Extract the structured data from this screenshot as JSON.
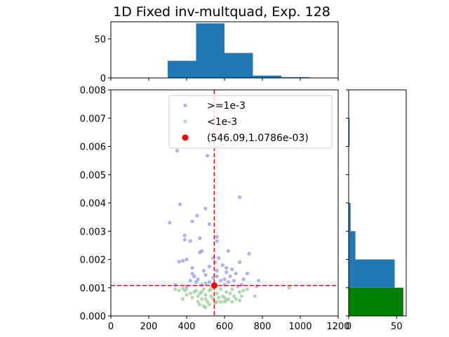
{
  "chart_data": {
    "type": "scatter",
    "title": "1D Fixed inv-multquad, Exp. 128",
    "xlim": [
      0,
      1200
    ],
    "ylim": [
      0,
      0.008
    ],
    "x_ticks": [
      0,
      200,
      400,
      600,
      800,
      1000,
      1200
    ],
    "y_ticks": [
      0.0,
      0.001,
      0.002,
      0.003,
      0.004,
      0.005,
      0.006,
      0.007,
      0.008
    ],
    "x_tick_labels": [
      "0",
      "200",
      "400",
      "600",
      "800",
      "1000",
      "1200"
    ],
    "y_tick_labels": [
      "0.000",
      "0.001",
      "0.002",
      "0.003",
      "0.004",
      "0.005",
      "0.006",
      "0.007",
      "0.008"
    ],
    "legend": {
      "placement": "upper-center",
      "entries": [
        ">=1e-3",
        "<1e-3",
        "(546.09,1.0786e-03)"
      ]
    },
    "colors": {
      "high": "#7b7bef",
      "low": "#7fbf7f",
      "best": "#ff0000",
      "hist": "#1f77b4",
      "hist_low": "#008000",
      "crosshair": "#ff0000"
    },
    "best_point": {
      "x": 546.09,
      "y": 0.0010786,
      "label": "(546.09,1.0786e-03)"
    },
    "series": [
      {
        "name": ">=1e-3",
        "points": [
          [
            350,
            0.00585
          ],
          [
            510,
            0.00567
          ],
          [
            680,
            0.0042
          ],
          [
            365,
            0.00395
          ],
          [
            500,
            0.0038
          ],
          [
            455,
            0.00355
          ],
          [
            310,
            0.0033
          ],
          [
            430,
            0.00335
          ],
          [
            520,
            0.00325
          ],
          [
            390,
            0.00285
          ],
          [
            390,
            0.0027
          ],
          [
            470,
            0.00275
          ],
          [
            560,
            0.0028
          ],
          [
            560,
            0.00265
          ],
          [
            420,
            0.00265
          ],
          [
            470,
            0.00225
          ],
          [
            480,
            0.0023
          ],
          [
            620,
            0.0023
          ],
          [
            730,
            0.0022
          ],
          [
            400,
            0.002
          ],
          [
            360,
            0.00192
          ],
          [
            380,
            0.00195
          ],
          [
            430,
            0.0017
          ],
          [
            430,
            0.0015
          ],
          [
            440,
            0.0014
          ],
          [
            490,
            0.0016
          ],
          [
            500,
            0.00145
          ],
          [
            520,
            0.00175
          ],
          [
            540,
            0.00205
          ],
          [
            550,
            0.0019
          ],
          [
            560,
            0.0016
          ],
          [
            570,
            0.00205
          ],
          [
            590,
            0.0018
          ],
          [
            610,
            0.0017
          ],
          [
            630,
            0.0014
          ],
          [
            640,
            0.00165
          ],
          [
            660,
            0.0015
          ],
          [
            680,
            0.0019
          ],
          [
            700,
            0.0013
          ],
          [
            720,
            0.0015
          ],
          [
            540,
            0.00135
          ],
          [
            600,
            0.0013
          ],
          [
            580,
            0.00125
          ],
          [
            520,
            0.0012
          ],
          [
            460,
            0.0013
          ],
          [
            420,
            0.00125
          ],
          [
            480,
            0.0011
          ],
          [
            620,
            0.0012
          ],
          [
            650,
            0.00125
          ],
          [
            690,
            0.0011
          ],
          [
            780,
            0.00125
          ],
          [
            770,
            0.00105
          ],
          [
            400,
            0.00105
          ],
          [
            340,
            0.0011
          ],
          [
            560,
            0.0014
          ],
          [
            600,
            0.0011
          ],
          [
            500,
            0.00115
          ],
          [
            670,
            0.00105
          ],
          [
            450,
            0.0012
          ],
          [
            610,
            0.00155
          ]
        ]
      },
      {
        "name": "<1e-3",
        "points": [
          [
            340,
            0.00095
          ],
          [
            360,
            0.0009
          ],
          [
            380,
            0.00098
          ],
          [
            390,
            0.0009
          ],
          [
            400,
            0.00075
          ],
          [
            380,
            0.0006
          ],
          [
            420,
            0.0008
          ],
          [
            430,
            0.00065
          ],
          [
            440,
            0.00085
          ],
          [
            450,
            0.0009
          ],
          [
            460,
            0.0007
          ],
          [
            470,
            0.0008
          ],
          [
            480,
            0.0006
          ],
          [
            490,
            0.00095
          ],
          [
            500,
            0.00075
          ],
          [
            510,
            0.0005
          ],
          [
            520,
            0.0009
          ],
          [
            530,
            0.0007
          ],
          [
            540,
            0.0006
          ],
          [
            560,
            0.0008
          ],
          [
            570,
            0.00065
          ],
          [
            580,
            0.00095
          ],
          [
            590,
            0.0007
          ],
          [
            600,
            0.0005
          ],
          [
            610,
            0.00085
          ],
          [
            620,
            0.0006
          ],
          [
            630,
            0.0008
          ],
          [
            640,
            0.00095
          ],
          [
            650,
            0.0007
          ],
          [
            660,
            0.0006
          ],
          [
            680,
            0.00085
          ],
          [
            690,
            0.0007
          ],
          [
            700,
            0.0009
          ],
          [
            720,
            0.00095
          ],
          [
            760,
            0.0007
          ],
          [
            940,
            0.001
          ],
          [
            460,
            0.0005
          ],
          [
            470,
            0.0004
          ],
          [
            490,
            0.00035
          ],
          [
            500,
            0.0003
          ],
          [
            520,
            0.0004
          ],
          [
            550,
            0.00045
          ],
          [
            580,
            0.0005
          ],
          [
            610,
            0.00055
          ],
          [
            640,
            0.0005
          ],
          [
            680,
            0.00055
          ],
          [
            530,
            0.00095
          ],
          [
            480,
            0.00085
          ],
          [
            400,
            0.00095
          ],
          [
            600,
            0.00065
          ],
          [
            560,
            0.0005
          ],
          [
            500,
            0.0006
          ]
        ]
      }
    ],
    "x_hist": {
      "bin_edges": [
        0,
        150,
        300,
        450,
        600,
        750,
        900,
        1050,
        1200
      ],
      "counts": [
        0,
        0,
        22,
        70,
        32,
        3,
        1,
        0
      ],
      "ylim": [
        0,
        72
      ],
      "y_ticks": [
        0,
        50
      ],
      "y_tick_labels": [
        "0",
        "50"
      ]
    },
    "y_hist": {
      "bin_edges": [
        0.0,
        0.001,
        0.002,
        0.003,
        0.004,
        0.005,
        0.006,
        0.007,
        0.008
      ],
      "counts_all": [
        0,
        48,
        7,
        2,
        0,
        0,
        1,
        0
      ],
      "counts_low": [
        57,
        0,
        0,
        0,
        0,
        0,
        0,
        0
      ],
      "xlim": [
        0,
        60
      ],
      "x_ticks": [
        0,
        50
      ],
      "x_tick_labels": [
        "0",
        "50"
      ]
    }
  }
}
